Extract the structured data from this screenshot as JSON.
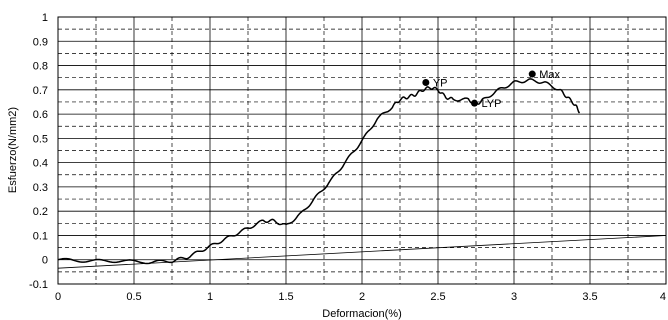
{
  "chart_data": {
    "type": "line",
    "title": "",
    "xlabel": "Deformacion(%)",
    "ylabel": "Esfuerzo(N/mm2)",
    "xlim": [
      0,
      4
    ],
    "ylim": [
      -0.1,
      1
    ],
    "x_ticks": [
      0,
      0.5,
      1,
      1.5,
      2,
      2.5,
      3,
      3.5,
      4
    ],
    "y_ticks": [
      -0.1,
      0,
      0.1,
      0.2,
      0.3,
      0.4,
      0.5,
      0.6,
      0.7,
      0.8,
      0.9,
      1
    ],
    "x_tick_labels": [
      "0",
      "0.5",
      "1",
      "1.5",
      "2",
      "2.5",
      "3",
      "3.5",
      "4"
    ],
    "y_tick_labels": [
      "-0.1",
      "0",
      "0.1",
      "0.2",
      "0.3",
      "0.4",
      "0.5",
      "0.6",
      "0.7",
      "0.8",
      "0.9",
      "1"
    ],
    "grid": true,
    "series": [
      {
        "x": [
          0,
          0.2,
          0.4,
          0.6,
          0.75,
          0.85,
          0.95,
          1.05,
          1.15,
          1.25,
          1.35,
          1.42,
          1.5,
          1.6,
          1.7,
          1.8,
          1.9,
          2.0,
          2.1,
          2.2,
          2.25,
          2.3,
          2.35,
          2.4,
          2.45,
          2.5,
          2.55,
          2.6,
          2.7,
          2.75,
          2.8,
          2.9,
          3.0,
          3.1,
          3.2,
          3.3,
          3.35,
          3.4,
          3.43
        ],
        "y": [
          0.0,
          -0.005,
          -0.005,
          -0.01,
          -0.005,
          0.01,
          0.04,
          0.07,
          0.1,
          0.13,
          0.16,
          0.16,
          0.14,
          0.19,
          0.26,
          0.33,
          0.41,
          0.49,
          0.58,
          0.63,
          0.66,
          0.67,
          0.68,
          0.7,
          0.71,
          0.7,
          0.67,
          0.66,
          0.66,
          0.64,
          0.66,
          0.7,
          0.73,
          0.74,
          0.73,
          0.7,
          0.67,
          0.64,
          0.61
        ],
        "color": "#000000"
      },
      {
        "x": [
          0,
          4
        ],
        "y": [
          -0.035,
          0.1
        ],
        "color": "#000000"
      }
    ],
    "markers": [
      {
        "label": "YP",
        "x": 2.42,
        "y": 0.73
      },
      {
        "label": "LYP",
        "x": 2.74,
        "y": 0.645
      },
      {
        "label": "Max",
        "x": 3.12,
        "y": 0.765
      }
    ]
  }
}
